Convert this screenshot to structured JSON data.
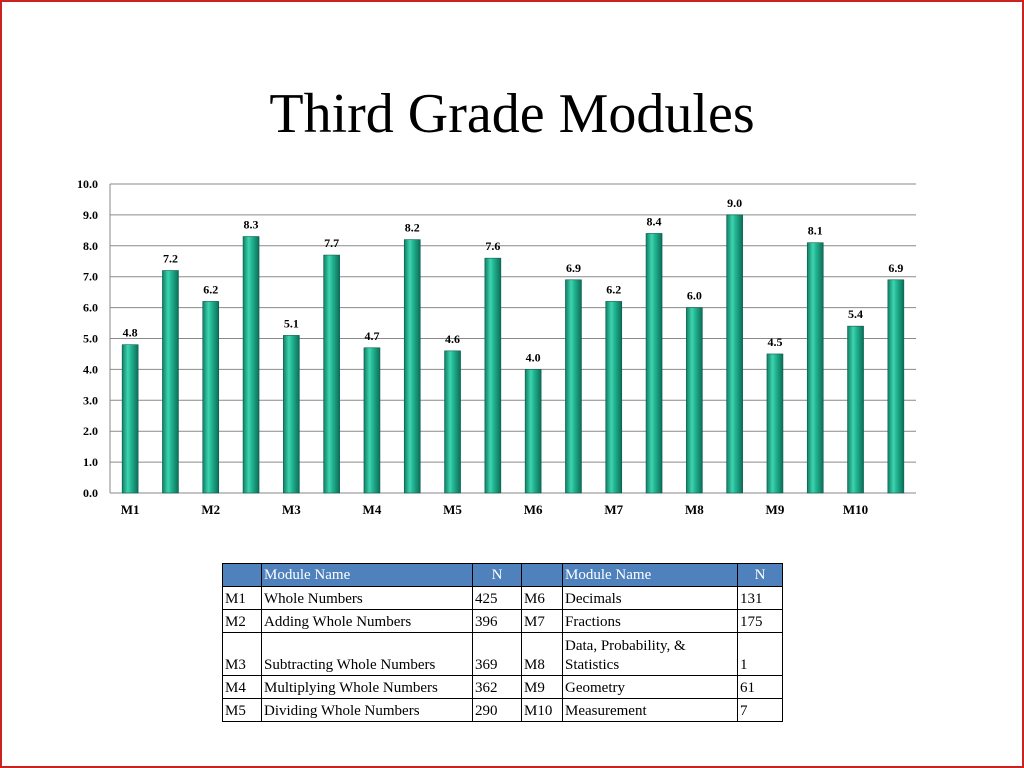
{
  "slide": {
    "title": "Third Grade Modules",
    "border_color": "#cc2222"
  },
  "chart_data": {
    "type": "bar",
    "title": "",
    "xlabel": "",
    "ylabel": "",
    "ylim": [
      0,
      10
    ],
    "y_ticks": [
      "0.0",
      "1.0",
      "2.0",
      "3.0",
      "4.0",
      "5.0",
      "6.0",
      "7.0",
      "8.0",
      "9.0",
      "10.0"
    ],
    "grid": true,
    "bar_color": "#1fa88a",
    "category_labels": [
      "M1",
      "M2",
      "M3",
      "M4",
      "M5",
      "M6",
      "M7",
      "M8",
      "M9",
      "M10"
    ],
    "values": [
      4.8,
      7.2,
      6.2,
      8.3,
      5.1,
      7.7,
      4.7,
      8.2,
      4.6,
      7.6,
      4.0,
      6.9,
      6.2,
      8.4,
      6.0,
      9.0,
      4.5,
      8.1,
      5.4,
      6.9
    ],
    "value_labels": [
      "4.8",
      "7.2",
      "6.2",
      "8.3",
      "5.1",
      "7.7",
      "4.7",
      "8.2",
      "4.6",
      "7.6",
      "4.0",
      "6.9",
      "6.2",
      "8.4",
      "6.0",
      "9.0",
      "4.5",
      "8.1",
      "5.4",
      "6.9"
    ]
  },
  "table": {
    "header_color": "#4f81bd",
    "headers": [
      "",
      "Module Name",
      "N",
      "",
      "Module Name",
      "N"
    ],
    "rows": [
      [
        "M1",
        "Whole Numbers",
        "425",
        "M6",
        "Decimals",
        "131"
      ],
      [
        "M2",
        "Adding Whole Numbers",
        "396",
        "M7",
        "Fractions",
        "175"
      ],
      [
        "M3",
        "Subtracting Whole Numbers",
        "369",
        "M8",
        "Data, Probability, & Statistics",
        "1"
      ],
      [
        "M4",
        "Multiplying Whole Numbers",
        "362",
        "M9",
        "Geometry",
        "61"
      ],
      [
        "M5",
        "Dividing Whole Numbers",
        "290",
        "M10",
        "Measurement",
        "7"
      ]
    ]
  }
}
